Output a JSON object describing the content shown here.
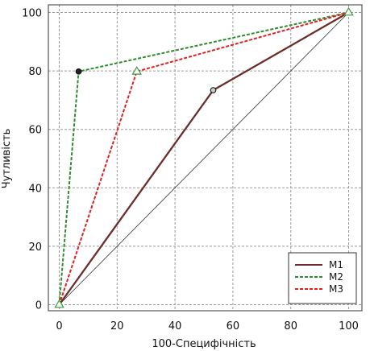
{
  "chart_data": {
    "type": "line",
    "xlabel": "100-Специфічність",
    "ylabel": "Чутливість",
    "xlim": [
      0,
      100
    ],
    "ylim": [
      0,
      100
    ],
    "x_ticks": [
      "0",
      "20",
      "40",
      "60",
      "80",
      "100"
    ],
    "y_ticks": [
      "0",
      "20",
      "40",
      "60",
      "80",
      "100"
    ],
    "grid": true,
    "reference_line": {
      "x": [
        0,
        100
      ],
      "y": [
        0,
        100
      ],
      "color": "#333333"
    },
    "legend_position": "bottom-right",
    "series": [
      {
        "name": "M1",
        "color": "#6b2e2a",
        "style": "solid",
        "x": [
          0,
          53.2,
          100
        ],
        "y": [
          0,
          73.4,
          100
        ],
        "point_marker": "circle"
      },
      {
        "name": "M2",
        "color": "#2e8b2e",
        "style": "dashed",
        "x": [
          0,
          6.7,
          100
        ],
        "y": [
          0,
          79.8,
          100
        ],
        "point_marker": "circle"
      },
      {
        "name": "M3",
        "color": "#e02020",
        "style": "dashed",
        "x": [
          0,
          26.8,
          100
        ],
        "y": [
          0,
          79.8,
          100
        ],
        "point_marker": "triangle"
      }
    ]
  }
}
